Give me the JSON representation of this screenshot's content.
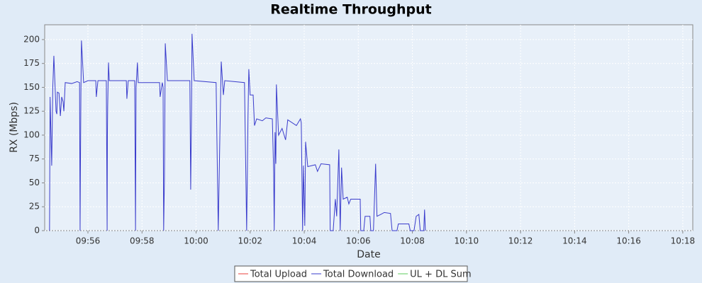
{
  "chart_data": {
    "type": "line",
    "title": "Realtime Throughput",
    "xlabel": "Date",
    "ylabel": "RX (Mbps)",
    "x": [
      594.58,
      594.6,
      594.66,
      594.7,
      594.74,
      594.82,
      594.85,
      594.87,
      594.93,
      594.98,
      595.03,
      595.08,
      595.11,
      595.16,
      595.4,
      595.6,
      595.69,
      595.71,
      595.72,
      595.74,
      595.76,
      595.84,
      596.0,
      596.29,
      596.31,
      596.37,
      596.68,
      596.71,
      596.72,
      596.73,
      596.76,
      596.79,
      597.42,
      597.44,
      597.49,
      597.73,
      597.76,
      597.78,
      597.83,
      597.86,
      598.65,
      598.67,
      598.75,
      598.78,
      598.8,
      598.83,
      598.86,
      598.94,
      599.77,
      599.8,
      599.83,
      599.85,
      599.93,
      600.74,
      600.82,
      600.88,
      600.93,
      601.01,
      601.06,
      601.79,
      601.87,
      601.92,
      601.95,
      602.0,
      602.11,
      602.16,
      602.24,
      602.45,
      602.58,
      602.82,
      602.87,
      602.89,
      602.92,
      602.95,
      602.97,
      603.05,
      603.18,
      603.31,
      603.39,
      603.71,
      603.86,
      603.89,
      603.94,
      603.97,
      604.02,
      604.05,
      604.13,
      604.41,
      604.49,
      604.62,
      604.94,
      604.96,
      605.07,
      605.15,
      605.2,
      605.28,
      605.33,
      605.38,
      605.44,
      605.59,
      605.65,
      605.72,
      606.07,
      606.09,
      606.2,
      606.25,
      606.43,
      606.46,
      606.56,
      606.64,
      606.69,
      606.83,
      606.96,
      607.19,
      607.25,
      607.43,
      607.48,
      607.87,
      607.92,
      608.06,
      608.14,
      608.24,
      608.29,
      608.42,
      608.45,
      608.48
    ],
    "series": [
      {
        "name": "Total Upload",
        "color": "#e8413e",
        "values": [
          null,
          null,
          null,
          null,
          null,
          null,
          null,
          null,
          null,
          null,
          null,
          null,
          null,
          null,
          null,
          null,
          null,
          null,
          null,
          null,
          null,
          null,
          null,
          null,
          null,
          null,
          null,
          null,
          null,
          null,
          null,
          null,
          null,
          null,
          null,
          null,
          null,
          null,
          null,
          null,
          null,
          null,
          null,
          null,
          null,
          null,
          null,
          null,
          null,
          null,
          null,
          null,
          null,
          null,
          null,
          null,
          null,
          null,
          null,
          null,
          null,
          null,
          null,
          null,
          null,
          null,
          null,
          null,
          null,
          null,
          null,
          null,
          null,
          null,
          null,
          null,
          null,
          null,
          null,
          null,
          null,
          null,
          null,
          null,
          null,
          null,
          null,
          null,
          null,
          null,
          null,
          null,
          null,
          null,
          null,
          null,
          null,
          null,
          null,
          null,
          null,
          null,
          null,
          null,
          null,
          null,
          null,
          null,
          null,
          null,
          null,
          null,
          null,
          null,
          null,
          null,
          null,
          null,
          null,
          null,
          null,
          null,
          null,
          null,
          null,
          null
        ]
      },
      {
        "name": "Total Download",
        "color": "#3a3ccc",
        "values": [
          0,
          140,
          68,
          150,
          183,
          125,
          122,
          145,
          144,
          120,
          140,
          135,
          125,
          155,
          154,
          156,
          155,
          0,
          55,
          143,
          199,
          155,
          157,
          157,
          140,
          157,
          157,
          0,
          100,
          130,
          176,
          157,
          157,
          138,
          157,
          157,
          0,
          150,
          176,
          155,
          155,
          140,
          155,
          150,
          0,
          55,
          196,
          157,
          157,
          43,
          120,
          206,
          157,
          155,
          0,
          100,
          177,
          142,
          157,
          155,
          0,
          120,
          169,
          142,
          142,
          110,
          117,
          115,
          118,
          117,
          60,
          0,
          103,
          70,
          153,
          100,
          107,
          95,
          116,
          110,
          117,
          113,
          0,
          68,
          5,
          93,
          67,
          69,
          62,
          70,
          69,
          0,
          0,
          33,
          15,
          85,
          0,
          66,
          33,
          35,
          28,
          33,
          33,
          0,
          0,
          15,
          15,
          0,
          0,
          70,
          15,
          17,
          19,
          18,
          0,
          0,
          7,
          7,
          0,
          0,
          15,
          17,
          0,
          0,
          22,
          0
        ]
      },
      {
        "name": "UL + DL Sum",
        "color": "#5ccc5c",
        "values": [
          null,
          null,
          null,
          null,
          null,
          null,
          null,
          null,
          null,
          null,
          null,
          null,
          null,
          null,
          null,
          null,
          null,
          null,
          null,
          null,
          null,
          null,
          null,
          null,
          null,
          null,
          null,
          null,
          null,
          null,
          null,
          null,
          null,
          null,
          null,
          null,
          null,
          null,
          null,
          null,
          null,
          null,
          null,
          null,
          null,
          null,
          null,
          null,
          null,
          null,
          null,
          null,
          null,
          null,
          null,
          null,
          null,
          null,
          null,
          null,
          null,
          null,
          null,
          null,
          null,
          null,
          null,
          null,
          null,
          null,
          null,
          null,
          null,
          null,
          null,
          null,
          null,
          null,
          null,
          null,
          null,
          null,
          null,
          null,
          null,
          null,
          null,
          null,
          null,
          null,
          null,
          null,
          null,
          null,
          null,
          null,
          null,
          null,
          null,
          null,
          null,
          null,
          null,
          null,
          null,
          null,
          null,
          null,
          null,
          null,
          null,
          null,
          null,
          null,
          null,
          null,
          null,
          null,
          null,
          null,
          null,
          null,
          null,
          null,
          null,
          null
        ]
      }
    ],
    "xlim": [
      594.4,
      618.37
    ],
    "xticks": [
      {
        "value": 596,
        "label": "09:56"
      },
      {
        "value": 598,
        "label": "09:58"
      },
      {
        "value": 600,
        "label": "10:00"
      },
      {
        "value": 602,
        "label": "10:02"
      },
      {
        "value": 604,
        "label": "10:04"
      },
      {
        "value": 606,
        "label": "10:06"
      },
      {
        "value": 608,
        "label": "10:08"
      },
      {
        "value": 610,
        "label": "10:10"
      },
      {
        "value": 612,
        "label": "10:12"
      },
      {
        "value": 614,
        "label": "10:14"
      },
      {
        "value": 616,
        "label": "10:16"
      },
      {
        "value": 618,
        "label": "10:18"
      }
    ],
    "ylim": [
      0,
      215.5
    ],
    "yticks": [
      0,
      25,
      50,
      75,
      100,
      125,
      150,
      175,
      200
    ],
    "grid": true,
    "legend": "bottom"
  }
}
